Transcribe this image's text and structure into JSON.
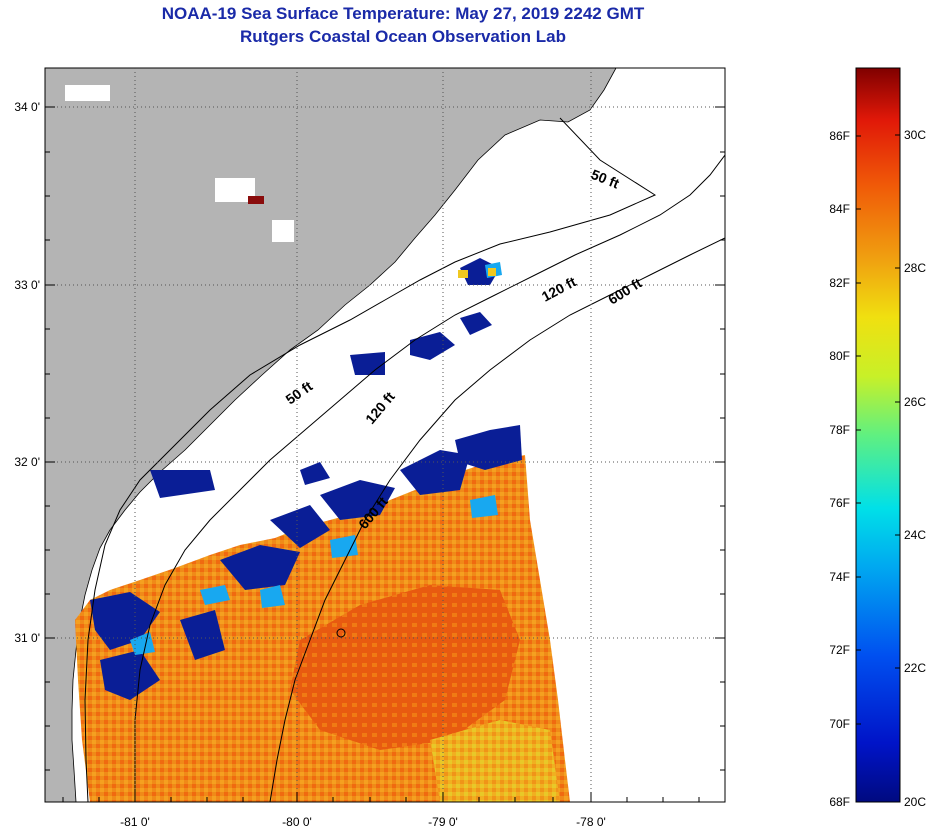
{
  "header": {
    "title": "NOAA-19 Sea Surface Temperature:  May 27, 2019 2242 GMT",
    "subtitle": "Rutgers Coastal Ocean Observation Lab"
  },
  "map": {
    "lon_ticks": [
      "-81 0'",
      "-80 0'",
      "-79 0'",
      "-78 0'"
    ],
    "lat_ticks": [
      "34 0'",
      "33 0'",
      "32 0'",
      "31 0'"
    ],
    "contour_labels": [
      "50 ft",
      "120 ft",
      "600 ft",
      "50 ft",
      "120 ft",
      "600 ft"
    ],
    "colors": {
      "land": "#b4b4b4",
      "coastline": "#000000",
      "ocean_no_data": "#ffffff",
      "cold": "#0a1e96",
      "warm": "#f07d14",
      "hot": "#e8440a"
    }
  },
  "colorbar": {
    "fahrenheit_labels": [
      "86F",
      "84F",
      "82F",
      "80F",
      "78F",
      "76F",
      "74F",
      "72F",
      "70F",
      "68F"
    ],
    "celsius_labels": [
      "30C",
      "28C",
      "26C",
      "24C",
      "22C",
      "20C"
    ],
    "range_f": [
      68,
      88
    ],
    "range_c": [
      20,
      31
    ]
  }
}
